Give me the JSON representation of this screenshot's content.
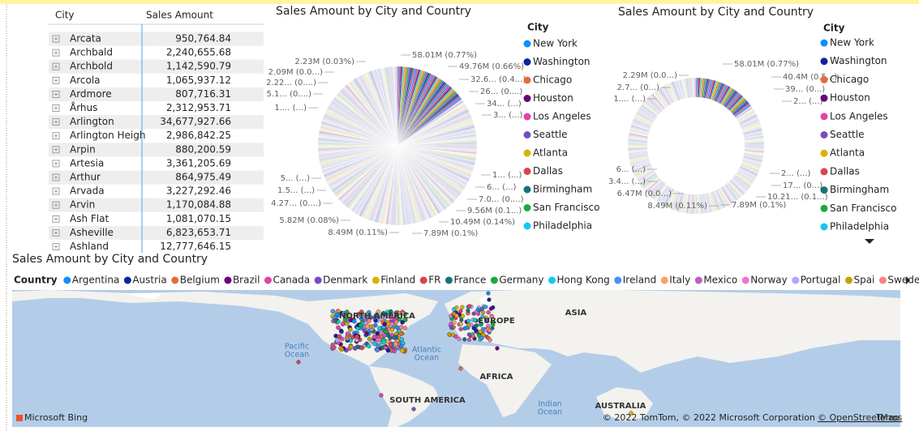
{
  "table": {
    "headers": [
      "City",
      "Sales Amount"
    ],
    "rows": [
      [
        "Arcata",
        "950,764.84"
      ],
      [
        "Archbald",
        "2,240,655.68"
      ],
      [
        "Archbold",
        "1,142,590.79"
      ],
      [
        "Arcola",
        "1,065,937.12"
      ],
      [
        "Ardmore",
        "807,716.31"
      ],
      [
        "Århus",
        "2,312,953.71"
      ],
      [
        "Arlington",
        "34,677,927.66"
      ],
      [
        "Arlington Heigh",
        "2,986,842.25"
      ],
      [
        "Arpin",
        "880,200.59"
      ],
      [
        "Artesia",
        "3,361,205.69"
      ],
      [
        "Arthur",
        "864,975.49"
      ],
      [
        "Arvada",
        "3,227,292.46"
      ],
      [
        "Arvin",
        "1,170,084.88"
      ],
      [
        "Ash Flat",
        "1,081,070.15"
      ],
      [
        "Asheville",
        "6,823,653.71"
      ],
      [
        "Ashland",
        "12,777,646.15"
      ]
    ]
  },
  "donut_left": {
    "title": "Sales Amount by City and Country",
    "legend_title": "City",
    "legend": [
      {
        "name": "New York",
        "color": "#118DFF"
      },
      {
        "name": "Washington",
        "color": "#12239E"
      },
      {
        "name": "Chicago",
        "color": "#E66C37"
      },
      {
        "name": "Houston",
        "color": "#6B007B"
      },
      {
        "name": "Los Angeles",
        "color": "#E044A7"
      },
      {
        "name": "Seattle",
        "color": "#744EC2"
      },
      {
        "name": "Atlanta",
        "color": "#D9B300"
      },
      {
        "name": "Dallas",
        "color": "#D64550"
      },
      {
        "name": "Birmingham",
        "color": "#197278"
      },
      {
        "name": "San Francisco",
        "color": "#1AAB40"
      },
      {
        "name": "Philadelphia",
        "color": "#15C6F4"
      }
    ],
    "labels": [
      "58.01M (0.77%)",
      "49.76M (0.66%)",
      "32.6... (0.4...)",
      "26... (0....)",
      "34... (...)",
      "3... (...)",
      "1... (...)",
      "6... (...)",
      "7.0... (0....)",
      "9.56M (0.1...)",
      "10.49M (0.14%)",
      "7.89M (0.1%)",
      "8.49M (0.11%)",
      "5.82M (0.08%)",
      "4.27... (0....)",
      "1.5... (...)",
      "5... (...)",
      "1.... (...)",
      "5.1... (0....)",
      "2.22... (0....)",
      "2.09M (0.0...)",
      "2.23M (0.03%)"
    ]
  },
  "donut_right": {
    "title": "Sales Amount by City and Country",
    "legend_title": "City",
    "legend": [
      {
        "name": "New York",
        "color": "#118DFF"
      },
      {
        "name": "Washington",
        "color": "#12239E"
      },
      {
        "name": "Chicago",
        "color": "#E66C37"
      },
      {
        "name": "Houston",
        "color": "#6B007B"
      },
      {
        "name": "Los Angeles",
        "color": "#E044A7"
      },
      {
        "name": "Seattle",
        "color": "#744EC2"
      },
      {
        "name": "Atlanta",
        "color": "#D9B300"
      },
      {
        "name": "Dallas",
        "color": "#D64550"
      },
      {
        "name": "Birmingham",
        "color": "#197278"
      },
      {
        "name": "San Francisco",
        "color": "#1AAB40"
      },
      {
        "name": "Philadelphia",
        "color": "#15C6F4"
      }
    ],
    "labels": [
      "58.01M (0.77%)",
      "40.4M (0.5...)",
      "39... (0...)",
      "2... (...)",
      "2... (...)",
      "17... (0...)",
      "10.21... (0.1...)",
      "7.89M (0.1%)",
      "8.49M (0.11%)",
      "6.47M (0.0...)",
      "3.4... (...)",
      "6... (...)",
      "1.... (...)",
      "2.7... (0...)",
      "2.29M (0.0...)"
    ]
  },
  "map": {
    "title": "Sales Amount by City and Country",
    "legend_title": "Country",
    "legend": [
      {
        "name": "Argentina",
        "color": "#118DFF"
      },
      {
        "name": "Austria",
        "color": "#12239E"
      },
      {
        "name": "Belgium",
        "color": "#E66C37"
      },
      {
        "name": "Brazil",
        "color": "#6B007B"
      },
      {
        "name": "Canada",
        "color": "#E044A7"
      },
      {
        "name": "Denmark",
        "color": "#744EC2"
      },
      {
        "name": "Finland",
        "color": "#D9B300"
      },
      {
        "name": "FR",
        "color": "#D64550"
      },
      {
        "name": "France",
        "color": "#197278"
      },
      {
        "name": "Germany",
        "color": "#1AAB40"
      },
      {
        "name": "Hong Kong",
        "color": "#15C6F4"
      },
      {
        "name": "Ireland",
        "color": "#4092FF"
      },
      {
        "name": "Italy",
        "color": "#FFA058"
      },
      {
        "name": "Mexico",
        "color": "#BE5DC9"
      },
      {
        "name": "Norway",
        "color": "#F472D0"
      },
      {
        "name": "Portugal",
        "color": "#B5A1FF"
      },
      {
        "name": "Spai",
        "color": "#C4A200"
      },
      {
        "name": "Swede",
        "color": "#FF8080"
      },
      {
        "name": "Sweden",
        "color": "#00DBBC"
      }
    ],
    "regions": [
      "NORTH AMERICA",
      "EUROPE",
      "ASIA",
      "AFRICA",
      "SOUTH AMERICA",
      "AUSTRALIA"
    ],
    "oceans": [
      [
        "Pacific",
        "Ocean"
      ],
      [
        "Atlantic",
        "Ocean"
      ],
      [
        "Indian",
        "Ocean"
      ]
    ],
    "logo": "Microsoft Bing",
    "attribution": "© 2022 TomTom, © 2022 Microsoft Corporation",
    "links": [
      "© OpenStreetMap",
      "Terms"
    ]
  }
}
